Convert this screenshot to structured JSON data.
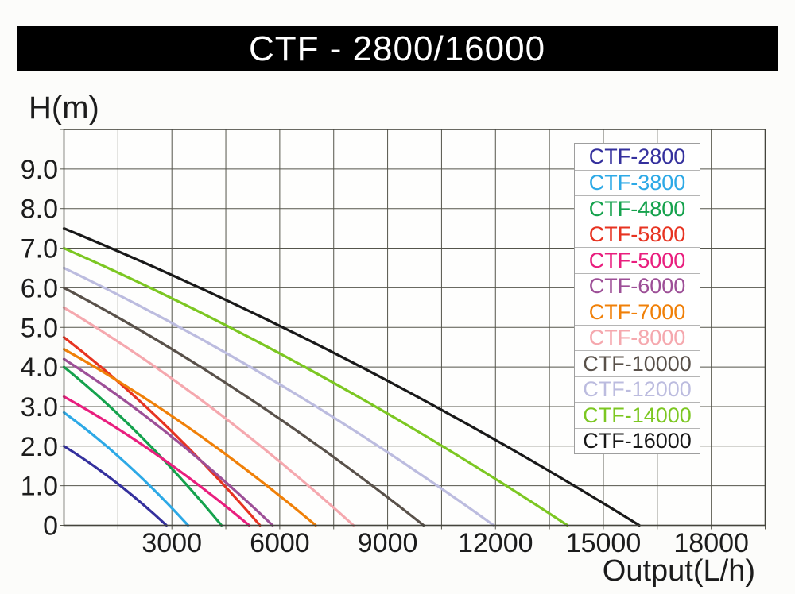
{
  "title_bar": {
    "text": "CTF - 2800/16000"
  },
  "colors": {
    "title_bg": "#000000",
    "title_text": "#ffffff",
    "background": "#fcfcfa",
    "plot_bg": "#fefefd",
    "grid": "#55554b",
    "plot_border": "#44443c",
    "text": "#1c1c1c",
    "legend_border": "#9e9e9e",
    "legend_row_border": "#b5b5b5",
    "legend_bg": "#ffffff"
  },
  "chart_data": {
    "type": "line",
    "title": "CTF - 2800/16000",
    "xlabel": "Output(L/h)",
    "ylabel": "H(m)",
    "xlim": [
      0,
      19500
    ],
    "ylim": [
      0,
      10
    ],
    "x_grid_step": 1500,
    "y_grid_step": 1,
    "grid": true,
    "legend_position": "upper right",
    "x_tick_labels": [
      {
        "value": 3000,
        "label": "3000"
      },
      {
        "value": 6000,
        "label": "6000"
      },
      {
        "value": 9000,
        "label": "9000"
      },
      {
        "value": 12000,
        "label": "12000"
      },
      {
        "value": 15000,
        "label": "15000"
      },
      {
        "value": 18000,
        "label": "18000"
      }
    ],
    "y_tick_labels": [
      {
        "value": 9,
        "label": "9.0"
      },
      {
        "value": 8,
        "label": "8.0"
      },
      {
        "value": 7,
        "label": "7.0"
      },
      {
        "value": 6,
        "label": "6.0"
      },
      {
        "value": 5,
        "label": "5.0"
      },
      {
        "value": 4,
        "label": "4.0"
      },
      {
        "value": 3,
        "label": "3.0"
      },
      {
        "value": 2,
        "label": "2.0"
      },
      {
        "value": 1,
        "label": "1.0"
      },
      {
        "value": 0,
        "label": "0"
      }
    ],
    "series": [
      {
        "name": "CTF-2800",
        "color": "#34309d",
        "max_head_m": 2.0,
        "max_flow_lh": 2850,
        "points": [
          [
            0,
            2.0
          ],
          [
            710,
            1.6
          ],
          [
            1430,
            1.1
          ],
          [
            2140,
            0.6
          ],
          [
            2850,
            0
          ]
        ]
      },
      {
        "name": "CTF-3800",
        "color": "#2da9e6",
        "max_head_m": 2.85,
        "max_flow_lh": 3450,
        "points": [
          [
            0,
            2.9
          ],
          [
            860,
            2.2
          ],
          [
            1730,
            1.6
          ],
          [
            2590,
            0.8
          ],
          [
            3450,
            0
          ]
        ]
      },
      {
        "name": "CTF-4800",
        "color": "#15a24d",
        "max_head_m": 4.0,
        "max_flow_lh": 4380,
        "points": [
          [
            0,
            4.0
          ],
          [
            1100,
            3.2
          ],
          [
            2190,
            2.2
          ],
          [
            3290,
            1.2
          ],
          [
            4380,
            0
          ]
        ]
      },
      {
        "name": "CTF-5800",
        "color": "#e73321",
        "max_head_m": 4.75,
        "max_flow_lh": 5450,
        "points": [
          [
            0,
            4.8
          ],
          [
            1360,
            3.7
          ],
          [
            2730,
            2.6
          ],
          [
            4090,
            1.4
          ],
          [
            5450,
            0
          ]
        ]
      },
      {
        "name": "CTF-5000",
        "color": "#e91e7e",
        "max_head_m": 3.25,
        "max_flow_lh": 5150,
        "points": [
          [
            0,
            3.3
          ],
          [
            1290,
            2.6
          ],
          [
            2580,
            1.8
          ],
          [
            3860,
            0.9
          ],
          [
            5150,
            0
          ]
        ]
      },
      {
        "name": "CTF-6000",
        "color": "#9d4f97",
        "max_head_m": 4.2,
        "max_flow_lh": 5800,
        "points": [
          [
            0,
            4.2
          ],
          [
            1450,
            3.3
          ],
          [
            2900,
            2.3
          ],
          [
            4350,
            1.2
          ],
          [
            5800,
            0
          ]
        ]
      },
      {
        "name": "CTF-7000",
        "color": "#f08008",
        "max_head_m": 4.45,
        "max_flow_lh": 7000,
        "points": [
          [
            0,
            4.5
          ],
          [
            1750,
            3.5
          ],
          [
            3500,
            2.4
          ],
          [
            5250,
            1.3
          ],
          [
            7000,
            0
          ]
        ]
      },
      {
        "name": "CTF-8000",
        "color": "#f5a8ae",
        "max_head_m": 5.5,
        "max_flow_lh": 8050,
        "points": [
          [
            0,
            5.5
          ],
          [
            2010,
            4.3
          ],
          [
            4030,
            3.0
          ],
          [
            6040,
            1.6
          ],
          [
            8050,
            0
          ]
        ]
      },
      {
        "name": "CTF-10000",
        "color": "#59514a",
        "max_head_m": 6.0,
        "max_flow_lh": 10000,
        "points": [
          [
            0,
            6.0
          ],
          [
            2500,
            4.7
          ],
          [
            5000,
            3.3
          ],
          [
            7500,
            1.7
          ],
          [
            10000,
            0
          ]
        ]
      },
      {
        "name": "CTF-12000",
        "color": "#bcbcdf",
        "max_head_m": 6.5,
        "max_flow_lh": 11950,
        "points": [
          [
            0,
            6.5
          ],
          [
            2990,
            5.1
          ],
          [
            5980,
            3.6
          ],
          [
            8960,
            1.9
          ],
          [
            11950,
            0
          ]
        ]
      },
      {
        "name": "CTF-14000",
        "color": "#7cc722",
        "max_head_m": 7.0,
        "max_flow_lh": 14000,
        "points": [
          [
            0,
            7.0
          ],
          [
            3500,
            5.5
          ],
          [
            7000,
            3.9
          ],
          [
            10500,
            2.0
          ],
          [
            14000,
            0
          ]
        ]
      },
      {
        "name": "CTF-16000",
        "color": "#191919",
        "max_head_m": 7.5,
        "max_flow_lh": 16000,
        "points": [
          [
            0,
            7.5
          ],
          [
            4000,
            5.9
          ],
          [
            8000,
            4.1
          ],
          [
            12000,
            2.2
          ],
          [
            16000,
            0
          ]
        ]
      }
    ]
  }
}
